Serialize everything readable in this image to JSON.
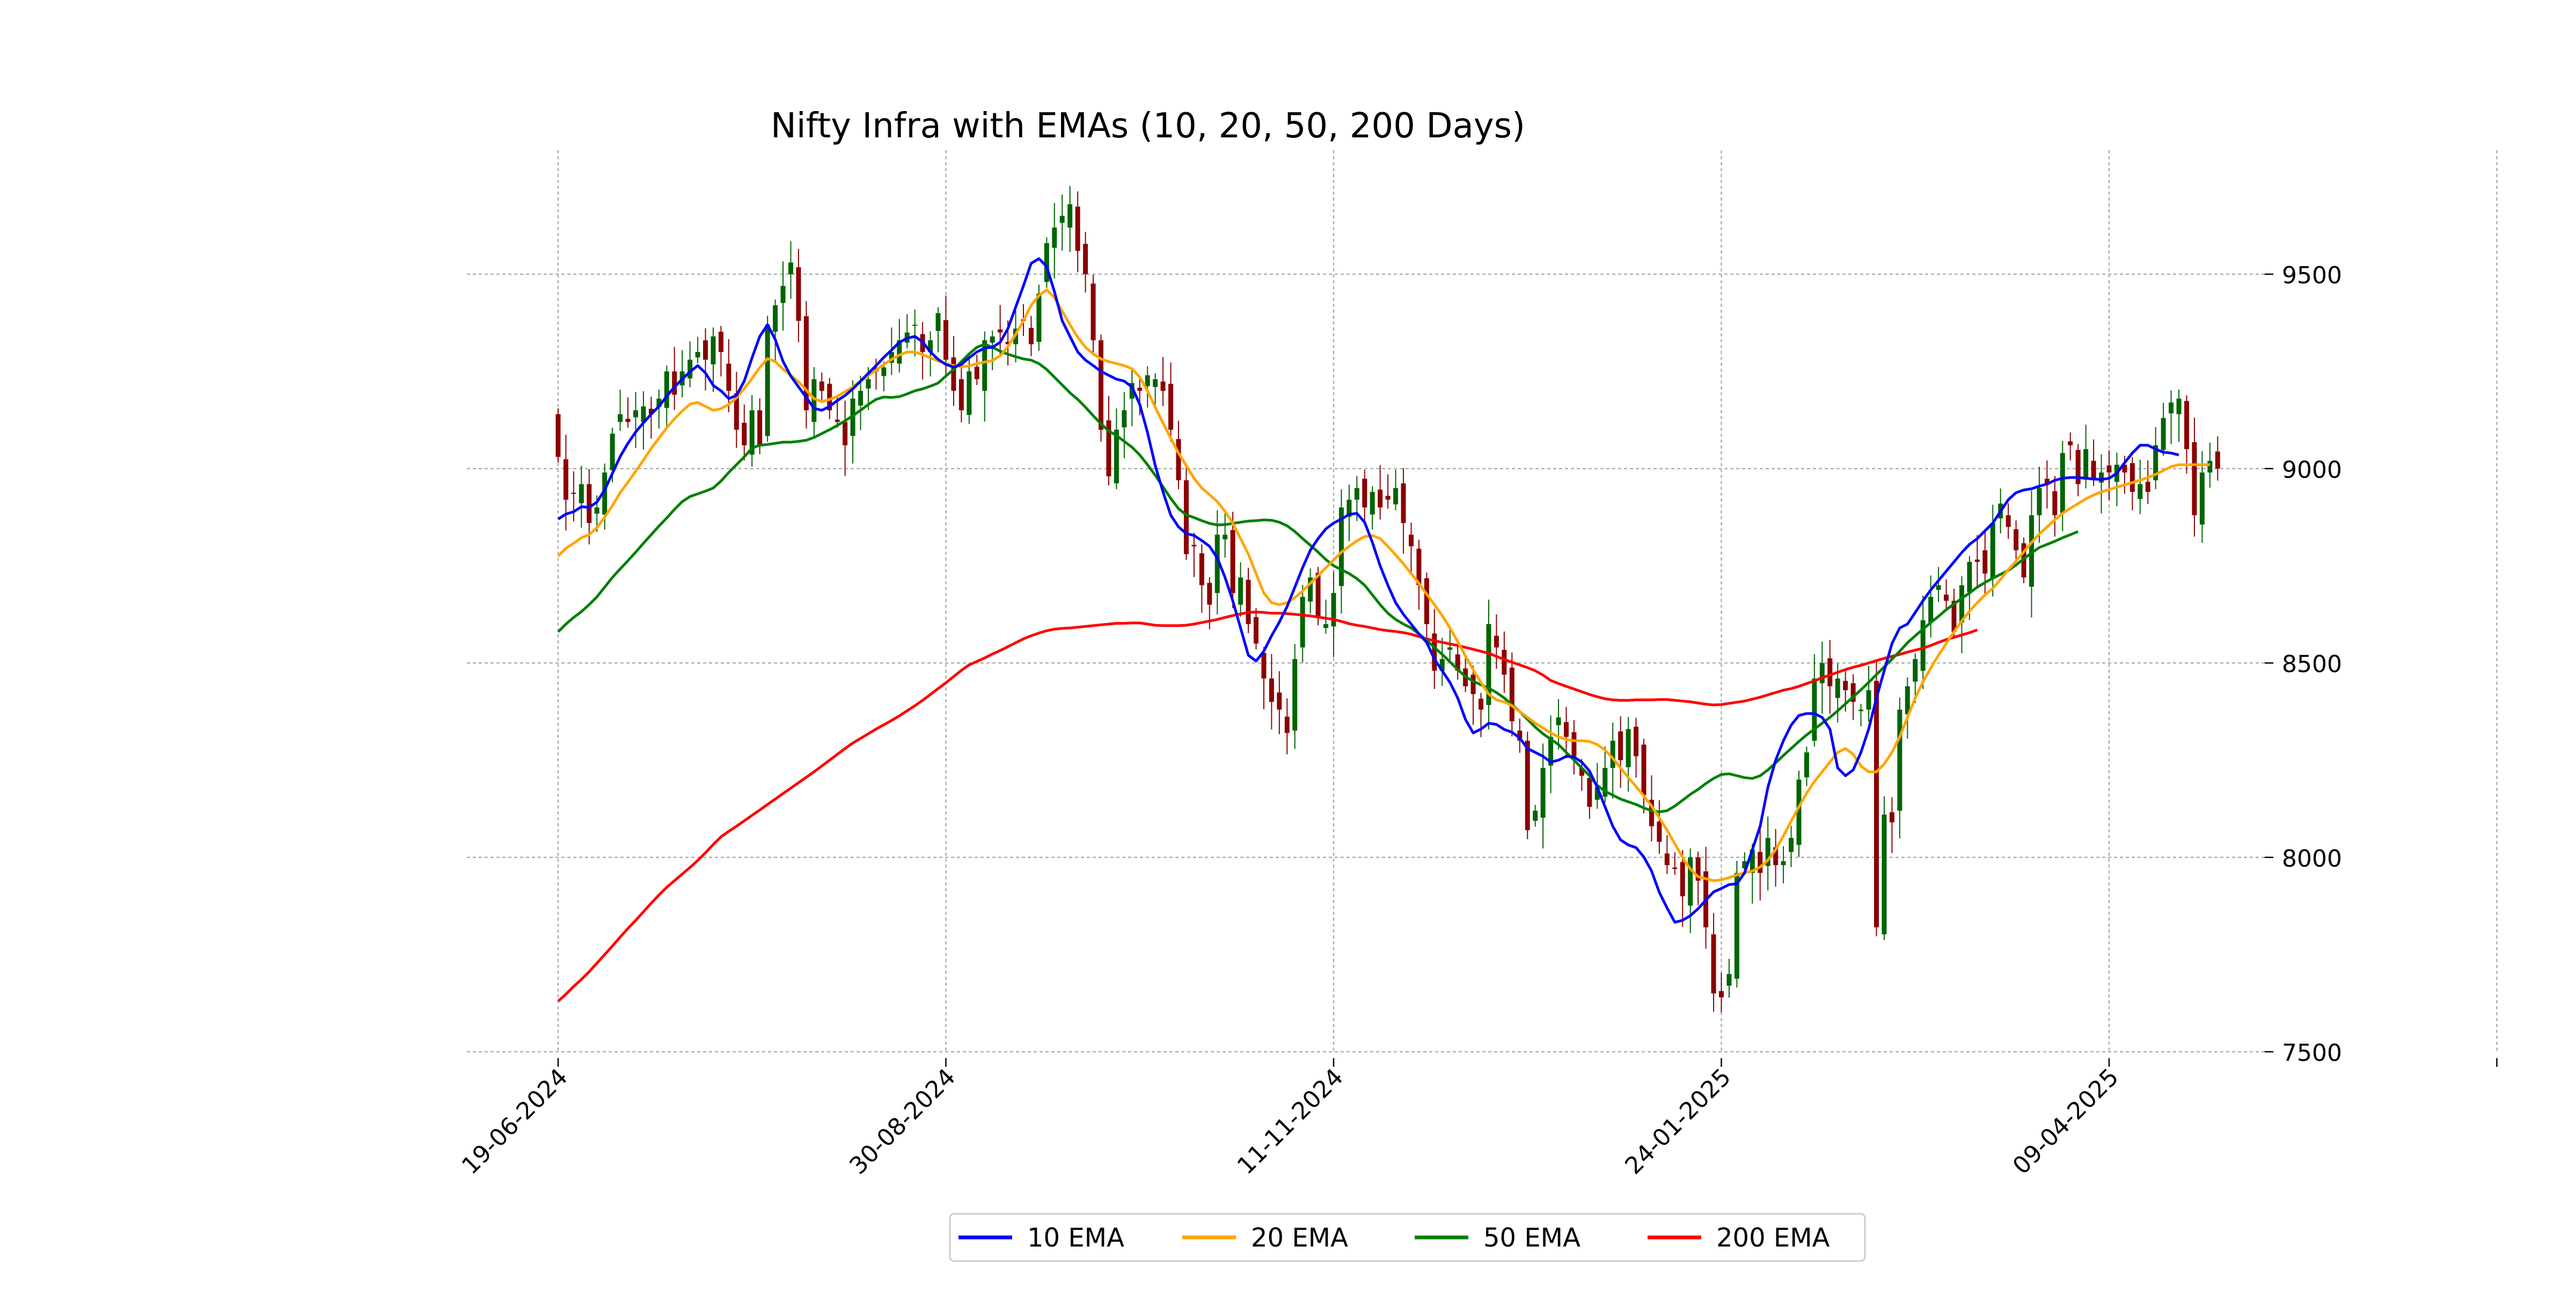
{
  "chart_data": {
    "type": "candlestick",
    "title": "Nifty Infra with EMAs (10, 20, 50, 200 Days)",
    "xlabel": "",
    "ylabel": "",
    "ylim": [
      7500,
      9800
    ],
    "y_ticks": [
      7500,
      8000,
      8500,
      9000,
      9500
    ],
    "y_axis_side": "right",
    "x_tick_labels": [
      "19-06-2024",
      "30-08-2024",
      "11-11-2024",
      "24-01-2025",
      "09-04-2025",
      ""
    ],
    "grid": true,
    "legend_position": "bottom-center",
    "legend": [
      "10 EMA",
      "20 EMA",
      "50 EMA",
      "200 EMA"
    ],
    "colors": {
      "up_candle": "#006400",
      "down_candle": "#8b0000",
      "ema10": "#0000ff",
      "ema20": "#ffa500",
      "ema50": "#008000",
      "ema200": "#ff0000",
      "grid": "#b0b0b0"
    },
    "close": [
      9030,
      8920,
      8935,
      8960,
      8860,
      8900,
      8990,
      9090,
      9140,
      9120,
      9150,
      9160,
      9140,
      9180,
      9250,
      9190,
      9250,
      9280,
      9300,
      9280,
      9340,
      9300,
      9200,
      9100,
      9060,
      9150,
      9060,
      9370,
      9420,
      9470,
      9530,
      9380,
      9150,
      9230,
      9200,
      9150,
      9120,
      9060,
      9180,
      9200,
      9230,
      9250,
      9260,
      9300,
      9330,
      9350,
      9370,
      9300,
      9330,
      9400,
      9280,
      9200,
      9150,
      9250,
      9230,
      9330,
      9340,
      9350,
      9320,
      9360,
      9380,
      9320,
      9450,
      9580,
      9620,
      9650,
      9680,
      9560,
      9500,
      9330,
      9100,
      8980,
      9100,
      9150,
      9220,
      9200,
      9240,
      9230,
      9200,
      9100,
      8970,
      8780,
      8800,
      8700,
      8650,
      8830,
      8830,
      8680,
      8720,
      8600,
      8550,
      8460,
      8400,
      8380,
      8320,
      8510,
      8670,
      8720,
      8620,
      8600,
      8680,
      8900,
      8920,
      8950,
      8900,
      8940,
      8900,
      8920,
      8950,
      8860,
      8800,
      8700,
      8600,
      8480,
      8510,
      8540,
      8480,
      8440,
      8420,
      8380,
      8600,
      8540,
      8470,
      8350,
      8300,
      8070,
      8120,
      8230,
      8310,
      8360,
      8310,
      8260,
      8210,
      8130,
      8180,
      8230,
      8300,
      8250,
      8330,
      8260,
      8160,
      8080,
      8040,
      7980,
      7970,
      7900,
      8000,
      7940,
      7820,
      7650,
      7640,
      7700,
      7960,
      7990,
      8020,
      7960,
      8050,
      7980,
      7990,
      8050,
      8200,
      8270,
      8460,
      8500,
      8440,
      8460,
      8430,
      8400,
      8380,
      8430,
      7820,
      8110,
      8090,
      8380,
      8440,
      8510,
      8610,
      8670,
      8700,
      8660,
      8580,
      8700,
      8760,
      8760,
      8730,
      8860,
      8910,
      8850,
      8790,
      8720,
      8880,
      8950,
      8960,
      8880,
      9040,
      9060,
      8960,
      9050,
      8970,
      8990,
      8990,
      9010,
      8990,
      8940,
      8960,
      8940,
      9060,
      9130,
      9170,
      9180,
      9050,
      8880,
      8990,
      9020,
      9000
    ],
    "ema10": [
      8870,
      8883,
      8889,
      8902,
      8900,
      8914,
      8945,
      8988,
      9031,
      9065,
      9094,
      9118,
      9140,
      9160,
      9186,
      9210,
      9230,
      9249,
      9265,
      9246,
      9214,
      9200,
      9180,
      9188,
      9225,
      9285,
      9340,
      9370,
      9332,
      9276,
      9238,
      9210,
      9183,
      9155,
      9150,
      9160,
      9175,
      9188,
      9205,
      9225,
      9245,
      9265,
      9286,
      9305,
      9325,
      9335,
      9340,
      9326,
      9300,
      9281,
      9268,
      9261,
      9268,
      9285,
      9300,
      9310,
      9312,
      9325,
      9360,
      9415,
      9470,
      9528,
      9540,
      9520,
      9455,
      9380,
      9340,
      9300,
      9279,
      9265,
      9250,
      9240,
      9230,
      9225,
      9210,
      9165,
      9093,
      9008,
      8940,
      8880,
      8850,
      8833,
      8828,
      8815,
      8800,
      8770,
      8720,
      8660,
      8590,
      8520,
      8505,
      8530,
      8570,
      8605,
      8645,
      8695,
      8745,
      8790,
      8820,
      8845,
      8860,
      8870,
      8882,
      8885,
      8862,
      8810,
      8750,
      8700,
      8655,
      8625,
      8600,
      8575,
      8553,
      8510,
      8480,
      8450,
      8410,
      8355,
      8320,
      8330,
      8345,
      8342,
      8329,
      8322,
      8307,
      8280,
      8270,
      8260,
      8245,
      8250,
      8260,
      8258,
      8245,
      8222,
      8180,
      8130,
      8080,
      8045,
      8032,
      8025,
      8001,
      7965,
      7910,
      7870,
      7833,
      7838,
      7850,
      7868,
      7890,
      7911,
      7920,
      7930,
      7932,
      7960,
      8020,
      8080,
      8180,
      8250,
      8300,
      8340,
      8365,
      8370,
      8370,
      8360,
      8330,
      8230,
      8210,
      8225,
      8270,
      8330,
      8410,
      8480,
      8550,
      8590,
      8600,
      8630,
      8660,
      8688,
      8712,
      8736,
      8760,
      8784,
      8805,
      8820,
      8840,
      8860,
      8890,
      8920,
      8938,
      8945,
      8948,
      8955,
      8960,
      8970,
      8975,
      8977,
      8977,
      8975,
      8973,
      8972,
      8975,
      8988,
      9015,
      9040,
      9060,
      9060,
      9050,
      9042,
      9040,
      9035
    ],
    "ema20": [
      8775,
      8795,
      8808,
      8822,
      8830,
      8848,
      8875,
      8905,
      8938,
      8965,
      8993,
      9022,
      9052,
      9078,
      9105,
      9128,
      9148,
      9166,
      9170,
      9160,
      9150,
      9154,
      9165,
      9182,
      9206,
      9232,
      9260,
      9283,
      9275,
      9256,
      9240,
      9223,
      9202,
      9180,
      9172,
      9178,
      9186,
      9198,
      9210,
      9225,
      9239,
      9253,
      9268,
      9281,
      9292,
      9300,
      9300,
      9293,
      9285,
      9277,
      9270,
      9265,
      9262,
      9264,
      9270,
      9274,
      9278,
      9290,
      9314,
      9345,
      9380,
      9420,
      9445,
      9460,
      9440,
      9405,
      9370,
      9338,
      9312,
      9295,
      9282,
      9275,
      9270,
      9265,
      9257,
      9235,
      9200,
      9158,
      9117,
      9078,
      9040,
      9008,
      8975,
      8950,
      8933,
      8915,
      8890,
      8860,
      8820,
      8780,
      8730,
      8680,
      8655,
      8650,
      8655,
      8668,
      8685,
      8705,
      8725,
      8745,
      8765,
      8785,
      8800,
      8814,
      8825,
      8828,
      8820,
      8800,
      8778,
      8755,
      8730,
      8705,
      8677,
      8650,
      8622,
      8590,
      8555,
      8518,
      8482,
      8450,
      8420,
      8405,
      8400,
      8390,
      8375,
      8360,
      8345,
      8333,
      8320,
      8310,
      8303,
      8300,
      8300,
      8298,
      8290,
      8276,
      8255,
      8230,
      8205,
      8182,
      8158,
      8132,
      8102,
      8070,
      8035,
      8000,
      7970,
      7950,
      7945,
      7940,
      7942,
      7948,
      7955,
      7960,
      7965,
      7975,
      7993,
      8020,
      8055,
      8093,
      8130,
      8165,
      8195,
      8220,
      8245,
      8270,
      8280,
      8265,
      8235,
      8220,
      8220,
      8240,
      8270,
      8310,
      8360,
      8410,
      8452,
      8487,
      8520,
      8550,
      8580,
      8608,
      8633,
      8655,
      8675,
      8692,
      8715,
      8740,
      8762,
      8786,
      8810,
      8832,
      8850,
      8868,
      8885,
      8898,
      8910,
      8922,
      8932,
      8940,
      8946,
      8952,
      8958,
      8964,
      8970,
      8977,
      8985,
      8995,
      9005,
      9010,
      9010,
      9010,
      9010,
      9010
    ],
    "ema50": [
      8580,
      8600,
      8617,
      8632,
      8650,
      8670,
      8695,
      8720,
      8742,
      8763,
      8785,
      8808,
      8830,
      8852,
      8873,
      8895,
      8915,
      8928,
      8935,
      8942,
      8950,
      8968,
      8990,
      9010,
      9030,
      9053,
      9060,
      9062,
      9065,
      9068,
      9068,
      9070,
      9073,
      9080,
      9090,
      9100,
      9111,
      9123,
      9136,
      9150,
      9165,
      9178,
      9184,
      9183,
      9185,
      9192,
      9200,
      9205,
      9212,
      9220,
      9238,
      9255,
      9275,
      9295,
      9312,
      9320,
      9312,
      9302,
      9294,
      9288,
      9282,
      9279,
      9270,
      9255,
      9235,
      9215,
      9195,
      9178,
      9158,
      9136,
      9115,
      9097,
      9085,
      9070,
      9055,
      9035,
      9010,
      8983,
      8953,
      8923,
      8897,
      8881,
      8874,
      8866,
      8859,
      8855,
      8856,
      8859,
      8862,
      8865,
      8866,
      8868,
      8867,
      8862,
      8853,
      8838,
      8820,
      8803,
      8785,
      8766,
      8750,
      8740,
      8730,
      8717,
      8700,
      8675,
      8650,
      8628,
      8612,
      8600,
      8590,
      8575,
      8558,
      8540,
      8522,
      8503,
      8483,
      8465,
      8453,
      8444,
      8435,
      8424,
      8410,
      8393,
      8375,
      8355,
      8335,
      8318,
      8304,
      8290,
      8270,
      8250,
      8230,
      8210,
      8185,
      8170,
      8160,
      8150,
      8143,
      8136,
      8127,
      8120,
      8117,
      8120,
      8132,
      8147,
      8162,
      8175,
      8190,
      8203,
      8213,
      8215,
      8210,
      8205,
      8203,
      8210,
      8225,
      8243,
      8262,
      8280,
      8298,
      8315,
      8330,
      8345,
      8360,
      8377,
      8395,
      8413,
      8431,
      8450,
      8470,
      8490,
      8510,
      8530,
      8552,
      8570,
      8587,
      8604,
      8620,
      8637,
      8652,
      8666,
      8680,
      8695,
      8707,
      8718,
      8728,
      8738,
      8752,
      8768,
      8783,
      8797,
      8805,
      8813,
      8822,
      8830,
      8838
    ],
    "ema200": [
      7630,
      7648,
      7668,
      7686,
      7706,
      7728,
      7750,
      7772,
      7795,
      7817,
      7838,
      7860,
      7882,
      7903,
      7923,
      7940,
      7957,
      7974,
      7992,
      8012,
      8033,
      8053,
      8067,
      8080,
      8094,
      8108,
      8122,
      8136,
      8150,
      8164,
      8178,
      8192,
      8206,
      8220,
      8235,
      8250,
      8265,
      8280,
      8294,
      8306,
      8318,
      8330,
      8341,
      8352,
      8364,
      8377,
      8390,
      8404,
      8419,
      8434,
      8449,
      8465,
      8481,
      8495,
      8504,
      8513,
      8523,
      8532,
      8542,
      8552,
      8562,
      8570,
      8577,
      8583,
      8587,
      8589,
      8590,
      8592,
      8594,
      8596,
      8598,
      8600,
      8602,
      8602,
      8603,
      8603,
      8600,
      8597,
      8596,
      8596,
      8596,
      8597,
      8600,
      8604,
      8608,
      8612,
      8617,
      8622,
      8626,
      8630,
      8631,
      8630,
      8628,
      8628,
      8627,
      8625,
      8623,
      8621,
      8618,
      8615,
      8612,
      8607,
      8601,
      8597,
      8594,
      8590,
      8586,
      8583,
      8581,
      8578,
      8574,
      8568,
      8562,
      8557,
      8553,
      8549,
      8545,
      8540,
      8535,
      8530,
      8525,
      8517,
      8509,
      8502,
      8495,
      8488,
      8480,
      8469,
      8455,
      8447,
      8440,
      8433,
      8426,
      8419,
      8413,
      8408,
      8405,
      8404,
      8404,
      8405,
      8405,
      8405,
      8406,
      8406,
      8404,
      8402,
      8400,
      8397,
      8394,
      8392,
      8393,
      8396,
      8399,
      8402,
      8407,
      8412,
      8418,
      8424,
      8430,
      8434,
      8440,
      8447,
      8454,
      8462,
      8469,
      8476,
      8483,
      8489,
      8494,
      8500,
      8506,
      8512,
      8517,
      8522,
      8528,
      8533,
      8538,
      8545,
      8553,
      8560,
      8566,
      8572,
      8578,
      8585
    ]
  }
}
